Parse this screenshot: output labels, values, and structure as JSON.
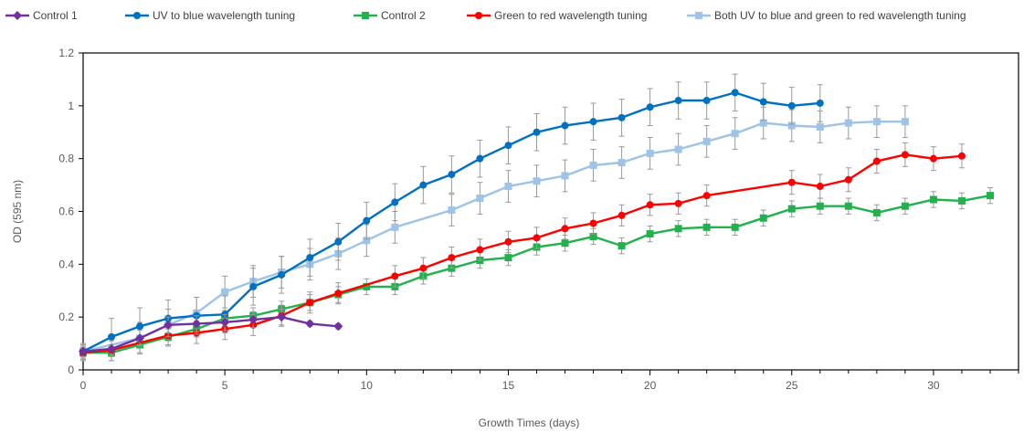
{
  "chart_data": {
    "type": "line",
    "title": "",
    "xlabel": "Growth Times (days)",
    "ylabel": "OD (595 nm)",
    "xlim": [
      0,
      33
    ],
    "ylim": [
      0,
      1.2
    ],
    "xticks": [
      0,
      5,
      10,
      15,
      20,
      25,
      30
    ],
    "yticks": [
      0,
      0.2,
      0.4,
      0.6,
      0.8,
      1,
      1.2
    ],
    "ytick_labels": [
      "0",
      "0.2",
      "0.4",
      "0.6",
      "0.8",
      "1",
      "1.2"
    ],
    "grid": false,
    "legend_position": "top",
    "series": [
      {
        "name": "Control 1",
        "color": "#7030A0",
        "marker": "diamond",
        "x": [
          0,
          1,
          2,
          3,
          4,
          5,
          6,
          7,
          8,
          9
        ],
        "y": [
          0.07,
          0.08,
          0.12,
          0.17,
          0.175,
          0.18,
          0.19,
          0.2,
          0.175,
          0.165
        ],
        "err": [
          0.02,
          0.03,
          0.03,
          0.03,
          0.03,
          0.03,
          0.03,
          0.03,
          0.01,
          0.01
        ]
      },
      {
        "name": "UV to blue wavelength tuning",
        "color": "#0070C0",
        "marker": "circle",
        "x": [
          0,
          1,
          2,
          3,
          4,
          5,
          6,
          7,
          8,
          9,
          10,
          11,
          12,
          13,
          14,
          15,
          16,
          17,
          18,
          19,
          20,
          21,
          22,
          23,
          24,
          25,
          26
        ],
        "y": [
          0.07,
          0.125,
          0.165,
          0.195,
          0.205,
          0.21,
          0.315,
          0.36,
          0.425,
          0.485,
          0.565,
          0.635,
          0.7,
          0.74,
          0.8,
          0.85,
          0.9,
          0.925,
          0.94,
          0.955,
          0.995,
          1.02,
          1.02,
          1.05,
          1.015,
          1.0,
          1.01
        ],
        "err": [
          0.03,
          0.07,
          0.07,
          0.07,
          0.07,
          0.07,
          0.07,
          0.07,
          0.07,
          0.07,
          0.07,
          0.07,
          0.07,
          0.07,
          0.07,
          0.07,
          0.07,
          0.07,
          0.07,
          0.07,
          0.07,
          0.07,
          0.07,
          0.07,
          0.07,
          0.07,
          0.07
        ]
      },
      {
        "name": "Control 2",
        "color": "#22B14C",
        "marker": "square",
        "x": [
          0,
          1,
          2,
          3,
          4,
          5,
          6,
          7,
          8,
          9,
          10,
          11,
          12,
          13,
          14,
          15,
          16,
          17,
          18,
          19,
          20,
          21,
          22,
          23,
          24,
          25,
          26,
          27,
          28,
          29,
          30,
          31,
          32
        ],
        "y": [
          0.065,
          0.065,
          0.095,
          0.125,
          0.155,
          0.195,
          0.205,
          0.23,
          0.255,
          0.285,
          0.315,
          0.315,
          0.355,
          0.385,
          0.415,
          0.425,
          0.465,
          0.48,
          0.505,
          0.47,
          0.515,
          0.535,
          0.54,
          0.54,
          0.575,
          0.61,
          0.62,
          0.62,
          0.595,
          0.62,
          0.645,
          0.64,
          0.66
        ],
        "err": [
          0.02,
          0.03,
          0.03,
          0.03,
          0.03,
          0.03,
          0.03,
          0.03,
          0.03,
          0.03,
          0.03,
          0.03,
          0.03,
          0.03,
          0.03,
          0.03,
          0.03,
          0.03,
          0.03,
          0.03,
          0.03,
          0.03,
          0.03,
          0.03,
          0.03,
          0.03,
          0.03,
          0.03,
          0.03,
          0.03,
          0.03,
          0.03,
          0.03
        ]
      },
      {
        "name": "Green to red wavelength tuning",
        "color": "#FF0000",
        "marker": "circle",
        "x": [
          0,
          1,
          3,
          4,
          5,
          6,
          7,
          8,
          9,
          11,
          12,
          13,
          14,
          15,
          16,
          17,
          18,
          19,
          20,
          21,
          22,
          25,
          26,
          27,
          28,
          29,
          30,
          31
        ],
        "y": [
          0.065,
          0.075,
          0.13,
          0.14,
          0.155,
          0.17,
          0.205,
          0.255,
          0.29,
          0.355,
          0.385,
          0.425,
          0.455,
          0.485,
          0.5,
          0.535,
          0.555,
          0.585,
          0.625,
          0.63,
          0.66,
          0.71,
          0.695,
          0.72,
          0.79,
          0.815,
          0.8,
          0.81
        ],
        "err": [
          0.03,
          0.04,
          0.04,
          0.04,
          0.04,
          0.04,
          0.04,
          0.04,
          0.04,
          0.04,
          0.04,
          0.04,
          0.04,
          0.04,
          0.04,
          0.04,
          0.04,
          0.04,
          0.04,
          0.04,
          0.04,
          0.045,
          0.045,
          0.045,
          0.045,
          0.045,
          0.045,
          0.045
        ]
      },
      {
        "name": "Both UV to blue and green to red wavelength tuning",
        "color": "#9DC3E6",
        "marker": "square",
        "x": [
          0,
          2,
          3,
          4,
          5,
          6,
          7,
          8,
          9,
          10,
          11,
          13,
          14,
          15,
          16,
          17,
          18,
          19,
          20,
          21,
          22,
          23,
          24,
          25,
          26,
          27,
          28,
          29
        ],
        "y": [
          0.07,
          0.12,
          0.17,
          0.215,
          0.295,
          0.335,
          0.37,
          0.4,
          0.44,
          0.49,
          0.54,
          0.605,
          0.65,
          0.695,
          0.715,
          0.735,
          0.775,
          0.785,
          0.82,
          0.835,
          0.865,
          0.895,
          0.935,
          0.925,
          0.92,
          0.935,
          0.94,
          0.94
        ],
        "err": [
          0.03,
          0.06,
          0.06,
          0.06,
          0.06,
          0.06,
          0.06,
          0.06,
          0.06,
          0.06,
          0.06,
          0.06,
          0.06,
          0.06,
          0.06,
          0.06,
          0.06,
          0.06,
          0.06,
          0.06,
          0.06,
          0.06,
          0.06,
          0.06,
          0.06,
          0.06,
          0.06,
          0.06
        ]
      }
    ]
  }
}
